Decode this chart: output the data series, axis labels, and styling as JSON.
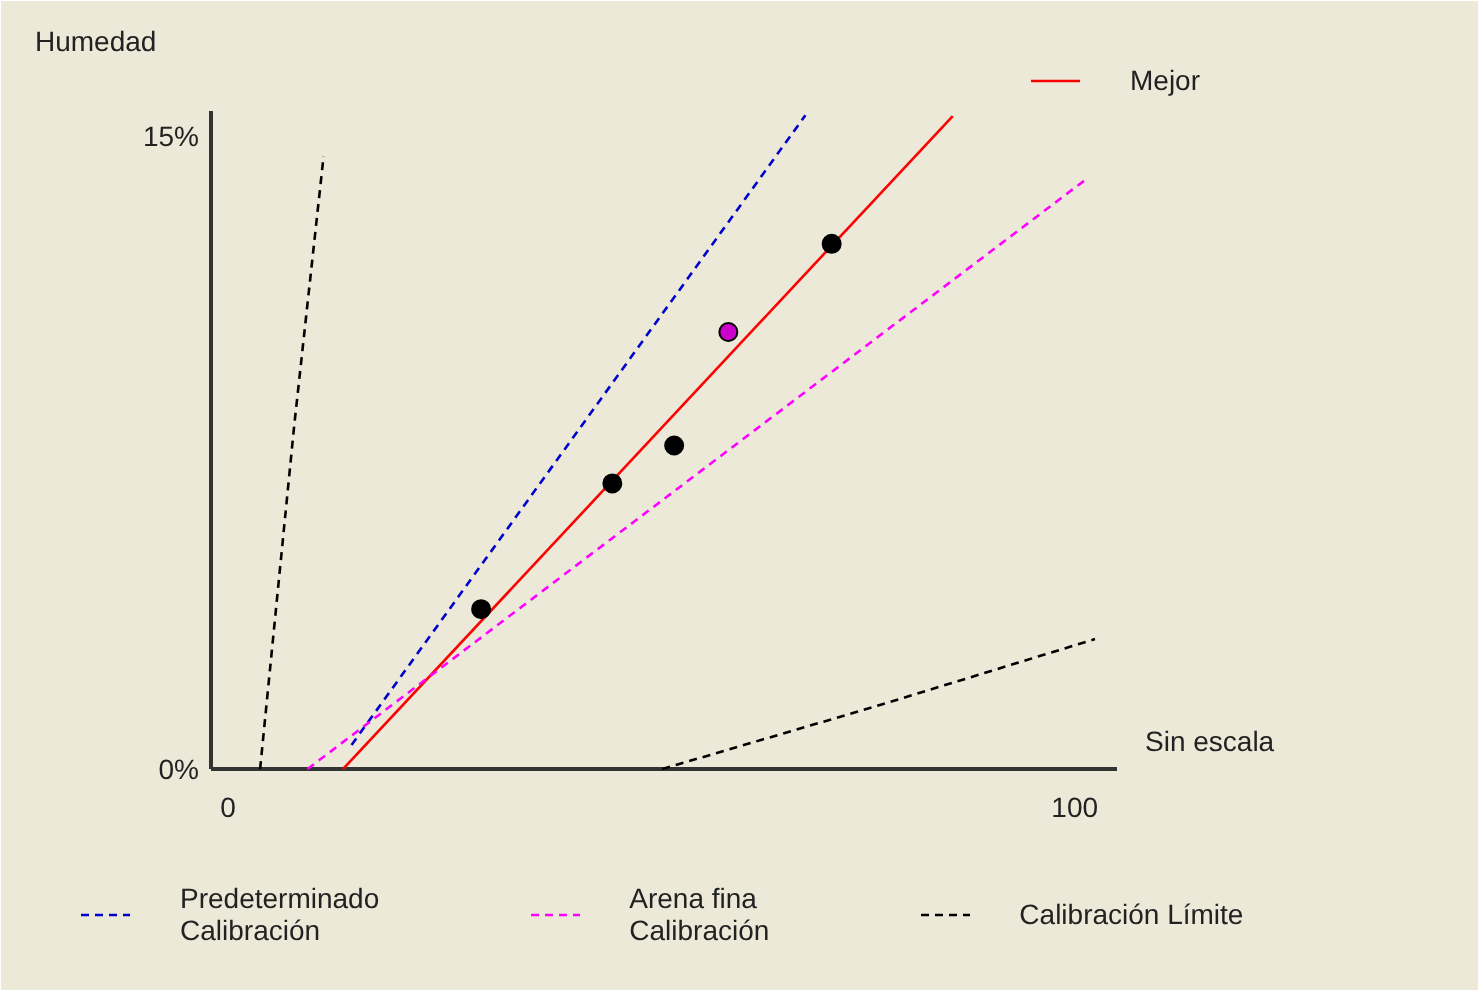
{
  "chart_data": {
    "type": "line",
    "ylabel": "Humedad",
    "xlabel": "Sin escala",
    "xlim": [
      -2,
      105
    ],
    "ylim": [
      0,
      15.6
    ],
    "xticks": [
      0,
      100
    ],
    "yticks": [
      {
        "value": 0,
        "label": "0%"
      },
      {
        "value": 15,
        "label": "15%"
      }
    ],
    "legend": "bottom",
    "grid": false,
    "series": [
      {
        "name": "Mejor",
        "color": "#ff0000",
        "x": [
          13.6,
          85.6
        ],
        "values": [
          0,
          15.48
        ],
        "line_style": "solid"
      },
      {
        "name": "Predeterminado\nCalibración",
        "color": "#0000cc",
        "x": [
          14.6,
          68.2
        ],
        "values": [
          0.57,
          15.5
        ],
        "line_style": "dashed"
      },
      {
        "name": "Arena fina\nCalibración",
        "color": "#ff00ff",
        "x": [
          9.4,
          101.2
        ],
        "values": [
          0,
          13.96
        ],
        "line_style": "dashed"
      },
      {
        "name": "Calibración Límite",
        "color": "#000000",
        "x": [
          3.8,
          7.8,
          11.3
        ],
        "values": [
          0,
          8.09,
          14.53
        ],
        "line_style": "dashed"
      },
      {
        "color": "#000000",
        "x": [
          51.3,
          76.9,
          102.4
        ],
        "values": [
          0,
          1.51,
          3.08
        ],
        "line_style": "dashed"
      },
      {
        "type": "scatter",
        "marker": "circle",
        "x": [
          29.9,
          45.4,
          52.7,
          59.1,
          71.3
        ],
        "values": [
          3.79,
          6.77,
          7.67,
          10.36,
          12.45
        ],
        "colors": [
          "#000000",
          "#000000",
          "#000000",
          "#cc00cc",
          "#000000"
        ]
      }
    ]
  }
}
